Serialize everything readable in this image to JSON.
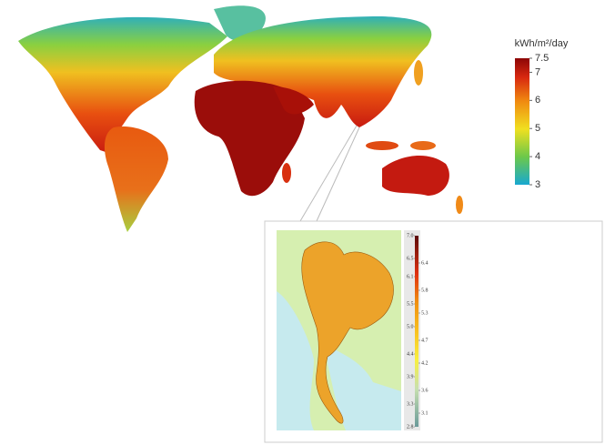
{
  "world_map": {
    "legend": {
      "title": "kWh/m²/day",
      "range": [
        3,
        7.5
      ],
      "ticks": [
        7.5,
        7,
        6,
        5,
        4,
        3
      ]
    }
  },
  "inset": {
    "legend": {
      "range": [
        2.8,
        7
      ],
      "left_ticks": [
        {
          "value": 7,
          "label": "7.0"
        },
        6.5,
        6.1,
        5.5,
        {
          "value": 5,
          "label": "5.0"
        },
        4.4,
        3.9,
        3.3,
        2.8
      ],
      "right_ticks": [
        6.4,
        5.8,
        5.3,
        4.7,
        4.2,
        3.6,
        3.1
      ]
    }
  }
}
